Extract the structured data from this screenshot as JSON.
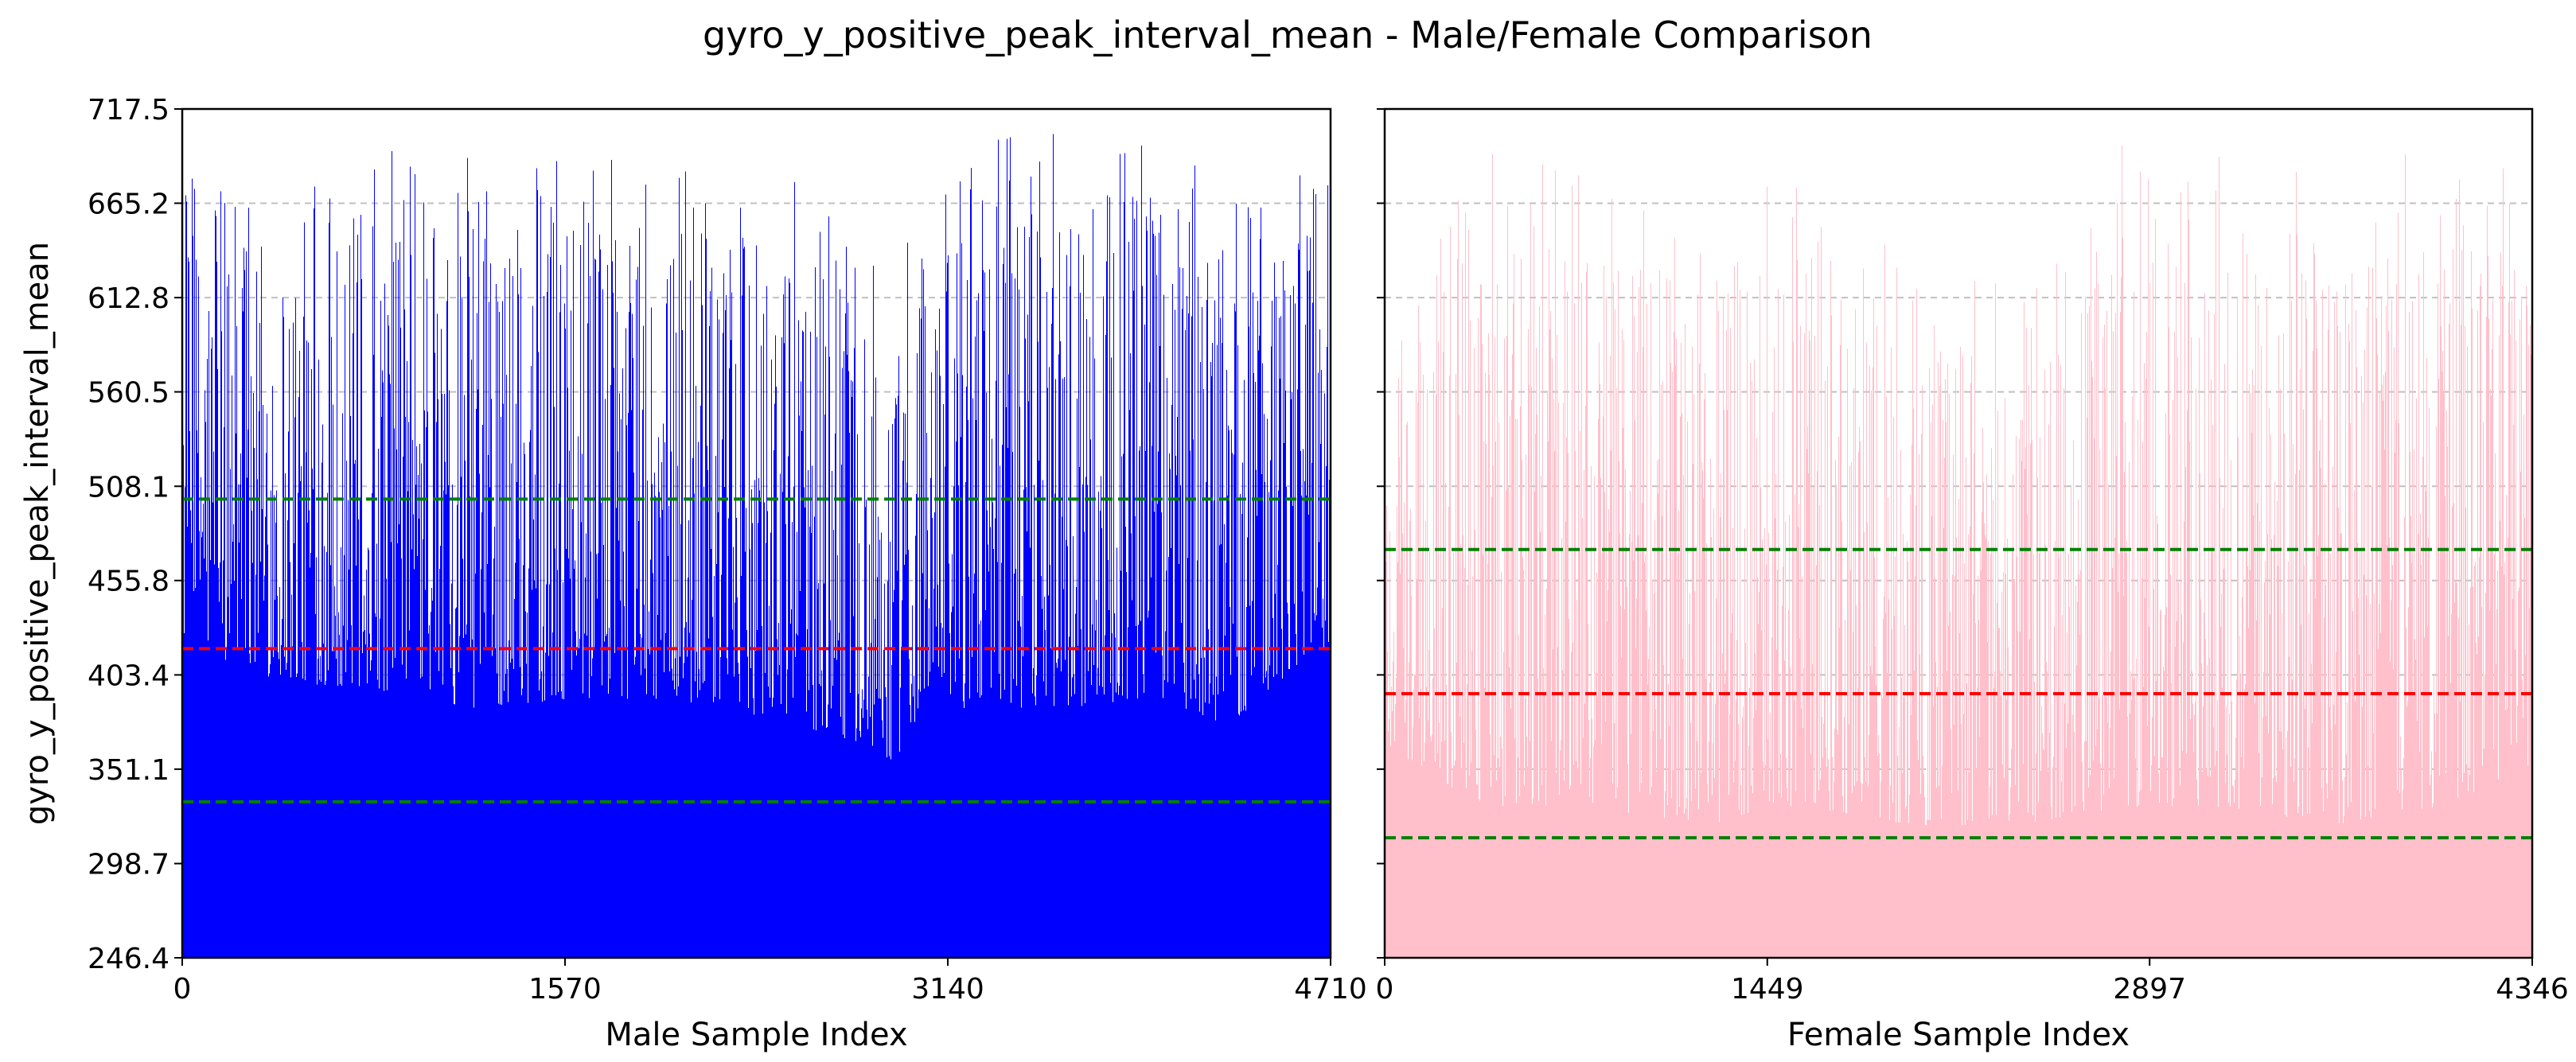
{
  "figure": {
    "title": "gyro_y_positive_peak_interval_mean - Male/Female Comparison"
  },
  "colors": {
    "male_bars": "#0000ff",
    "female_bars": "#ffc0cb",
    "mean_line": "#ff0000",
    "std_line": "#008000",
    "grid": "#c0c0c0",
    "axes": "#000000"
  },
  "chart_data": [
    {
      "type": "bar",
      "panel": "left",
      "title": "",
      "xlabel": "Male Sample Index",
      "ylabel": "gyro_y_positive_peak_interval_mean",
      "xlim": [
        0,
        4710
      ],
      "ylim": [
        246.4,
        717.5
      ],
      "xticks": [
        0,
        1570,
        3140,
        4710
      ],
      "yticks": [
        246.4,
        298.7,
        351.1,
        403.4,
        455.8,
        508.1,
        560.5,
        612.8,
        665.2,
        717.5
      ],
      "ytick_labels": [
        "246.4",
        "298.7",
        "351.1",
        "403.4",
        "455.8",
        "508.1",
        "560.5",
        "612.8",
        "665.2",
        "717.5"
      ],
      "grid": "horizontal dashed",
      "n_samples": 4710,
      "series_color": "#0000ff",
      "value_envelope": {
        "x": [
          0,
          400,
          800,
          1200,
          1600,
          2000,
          2400,
          2800,
          2900,
          3100,
          3200,
          3600,
          4000,
          4300,
          4500,
          4710
        ],
        "y_max": [
          690,
          700,
          710,
          700,
          690,
          690,
          695,
          640,
          620,
          690,
          700,
          717,
          700,
          690,
          690,
          680
        ],
        "y_min": [
          420,
          400,
          395,
          385,
          390,
          390,
          380,
          365,
          350,
          400,
          385,
          385,
          390,
          375,
          400,
          420
        ]
      },
      "reference_lines": [
        {
          "kind": "mean",
          "value": 418.0,
          "color": "#ff0000",
          "style": "dashed"
        },
        {
          "kind": "mean+std",
          "value": 501.0,
          "color": "#008000",
          "style": "dashed"
        },
        {
          "kind": "mean-std",
          "value": 333.0,
          "color": "#008000",
          "style": "dashed"
        }
      ]
    },
    {
      "type": "bar",
      "panel": "right",
      "title": "",
      "xlabel": "Female Sample Index",
      "ylabel": "",
      "xlim": [
        0,
        4346
      ],
      "ylim": [
        246.4,
        717.5
      ],
      "xticks": [
        0,
        1449,
        2897,
        4346
      ],
      "yticks": [
        246.4,
        298.7,
        351.1,
        403.4,
        455.8,
        508.1,
        560.5,
        612.8,
        665.2,
        717.5
      ],
      "ytick_labels_visible": false,
      "grid": "horizontal dashed",
      "n_samples": 4346,
      "series_color": "#ffc0cb",
      "value_envelope": {
        "x": [
          0,
          400,
          800,
          1200,
          1600,
          2000,
          2400,
          2800,
          3200,
          3600,
          4000,
          4346
        ],
        "y_max": [
          600,
          700,
          690,
          670,
          690,
          640,
          620,
          700,
          690,
          680,
          700,
          690
        ],
        "y_min": [
          360,
          330,
          330,
          320,
          330,
          320,
          320,
          330,
          330,
          320,
          330,
          350
        ]
      },
      "reference_lines": [
        {
          "kind": "mean",
          "value": 393.0,
          "color": "#ff0000",
          "style": "dashed"
        },
        {
          "kind": "mean+std",
          "value": 473.0,
          "color": "#008000",
          "style": "dashed"
        },
        {
          "kind": "mean-std",
          "value": 313.0,
          "color": "#008000",
          "style": "dashed"
        }
      ]
    }
  ]
}
